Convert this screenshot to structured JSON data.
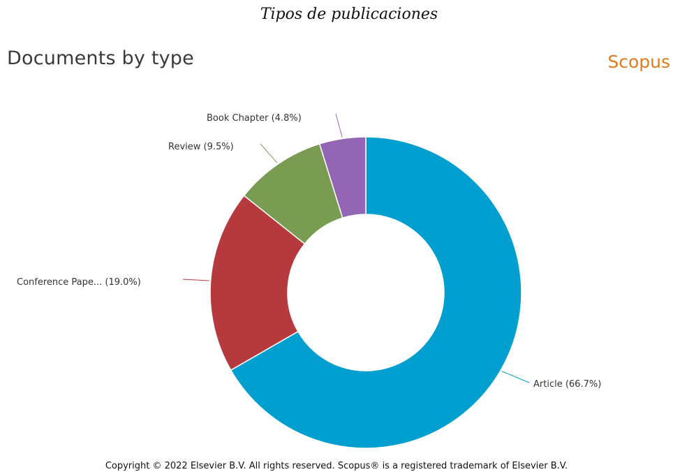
{
  "caption": "Tipos de publicaciones",
  "brand": "Scopus",
  "copyright": "Copyright © 2022 Elsevier B.V. All rights reserved. Scopus® is a registered trademark of Elsevier B.V.",
  "chart_data": {
    "type": "pie",
    "title": "Documents by type",
    "donut": true,
    "legend": "none",
    "slices": [
      {
        "label": "Article (66.7%)",
        "value": 66.7,
        "color": "#009fcf"
      },
      {
        "label": "Conference Pape... (19.0%)",
        "value": 19.0,
        "color": "#b5393d"
      },
      {
        "label": "Review (9.5%)",
        "value": 9.5,
        "color": "#7a9c52"
      },
      {
        "label": "Book Chapter (4.8%)",
        "value": 4.8,
        "color": "#9266b5"
      }
    ]
  }
}
